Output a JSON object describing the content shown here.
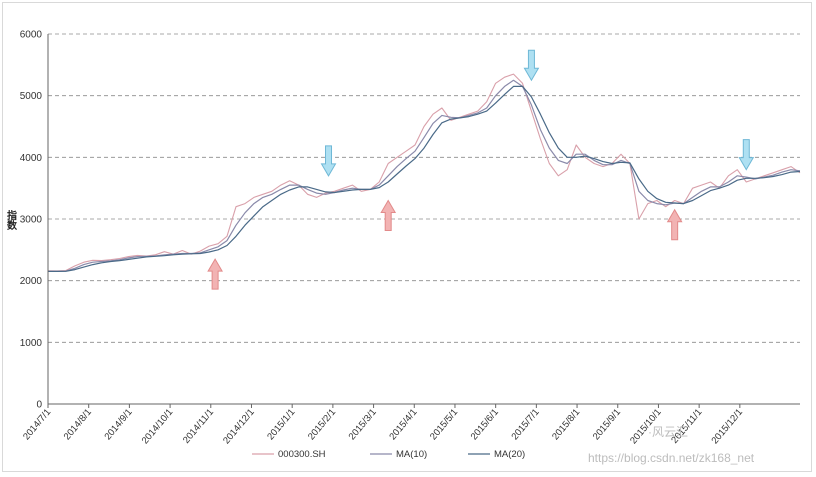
{
  "chart_data": {
    "type": "line",
    "title": "",
    "xlabel": "",
    "ylabel": "指数",
    "ylim": [
      0,
      6000
    ],
    "yticks": [
      0,
      1000,
      2000,
      3000,
      4000,
      5000,
      6000
    ],
    "xtick_labels": [
      "2014/7/1",
      "2014/8/1",
      "2014/9/1",
      "2014/10/1",
      "2014/11/1",
      "2014/12/1",
      "2015/1/1",
      "2015/2/1",
      "2015/3/1",
      "2015/4/1",
      "2015/5/1",
      "2015/6/1",
      "2015/7/1",
      "2015/8/1",
      "2015/9/1",
      "2015/10/1",
      "2015/11/1",
      "2015/12/1"
    ],
    "grid": "horizontal dashed",
    "legend_position": "bottom",
    "series": [
      {
        "name": "000300.SH",
        "color": "#d9a0aa",
        "values": [
          2160,
          2158,
          2165,
          2240,
          2300,
          2330,
          2325,
          2340,
          2360,
          2390,
          2410,
          2400,
          2420,
          2470,
          2430,
          2490,
          2430,
          2480,
          2560,
          2600,
          2720,
          3200,
          3250,
          3350,
          3400,
          3450,
          3550,
          3620,
          3550,
          3400,
          3350,
          3420,
          3450,
          3500,
          3550,
          3450,
          3480,
          3600,
          3900,
          4000,
          4100,
          4200,
          4500,
          4700,
          4800,
          4600,
          4650,
          4700,
          4750,
          4900,
          5200,
          5300,
          5350,
          5200,
          4750,
          4300,
          3900,
          3700,
          3800,
          4200,
          4000,
          3900,
          3850,
          3900,
          4050,
          3900,
          3000,
          3250,
          3300,
          3200,
          3300,
          3250,
          3500,
          3550,
          3600,
          3500,
          3700,
          3800,
          3600,
          3650,
          3700,
          3750,
          3800,
          3850,
          3750
        ]
      },
      {
        "name": "MA(10)",
        "color": "#8a8aaa",
        "values": [
          2150,
          2152,
          2155,
          2200,
          2260,
          2300,
          2310,
          2320,
          2340,
          2370,
          2390,
          2395,
          2400,
          2420,
          2430,
          2440,
          2440,
          2450,
          2500,
          2550,
          2650,
          2900,
          3100,
          3250,
          3350,
          3400,
          3480,
          3550,
          3550,
          3480,
          3420,
          3400,
          3430,
          3470,
          3500,
          3480,
          3480,
          3550,
          3700,
          3850,
          3980,
          4100,
          4320,
          4550,
          4680,
          4650,
          4640,
          4680,
          4720,
          4800,
          5000,
          5150,
          5250,
          5150,
          4850,
          4450,
          4150,
          3950,
          3900,
          4050,
          4050,
          3950,
          3880,
          3880,
          3950,
          3900,
          3450,
          3300,
          3250,
          3230,
          3260,
          3250,
          3350,
          3450,
          3520,
          3520,
          3600,
          3700,
          3680,
          3650,
          3680,
          3710,
          3760,
          3800,
          3780
        ]
      },
      {
        "name": "MA(20)",
        "color": "#4a6a88",
        "values": [
          2150,
          2150,
          2152,
          2180,
          2220,
          2260,
          2290,
          2310,
          2325,
          2345,
          2365,
          2385,
          2395,
          2405,
          2420,
          2430,
          2435,
          2440,
          2465,
          2500,
          2570,
          2720,
          2900,
          3050,
          3200,
          3300,
          3400,
          3470,
          3520,
          3520,
          3480,
          3440,
          3430,
          3450,
          3470,
          3480,
          3480,
          3510,
          3600,
          3730,
          3860,
          3980,
          4150,
          4370,
          4560,
          4620,
          4640,
          4660,
          4700,
          4750,
          4880,
          5020,
          5150,
          5150,
          4980,
          4700,
          4400,
          4150,
          4000,
          4000,
          4020,
          3980,
          3930,
          3900,
          3920,
          3910,
          3650,
          3450,
          3330,
          3270,
          3260,
          3250,
          3300,
          3380,
          3460,
          3500,
          3550,
          3630,
          3660,
          3660,
          3670,
          3690,
          3720,
          3760,
          3770
        ]
      }
    ],
    "annotations": {
      "up_arrows": [
        {
          "x_index": 28,
          "y": 2350,
          "color": "#f2b3b3"
        },
        {
          "x_index": 57,
          "y": 3300,
          "color": "#f2b3b3"
        },
        {
          "x_index": 105,
          "y": 3150,
          "color": "#f2b3b3"
        }
      ],
      "down_arrows": [
        {
          "x_index": 47,
          "y": 3700,
          "color": "#aee0f2"
        },
        {
          "x_index": 81,
          "y": 5250,
          "color": "#aee0f2"
        },
        {
          "x_index": 117,
          "y": 3800,
          "color": "#aee0f2"
        }
      ]
    }
  },
  "watermark": {
    "top": "·风云汇",
    "bottom": "https://blog.csdn.net/zk168_net"
  },
  "colors": {
    "grid": "#8c8c8c",
    "axis": "#555555"
  }
}
